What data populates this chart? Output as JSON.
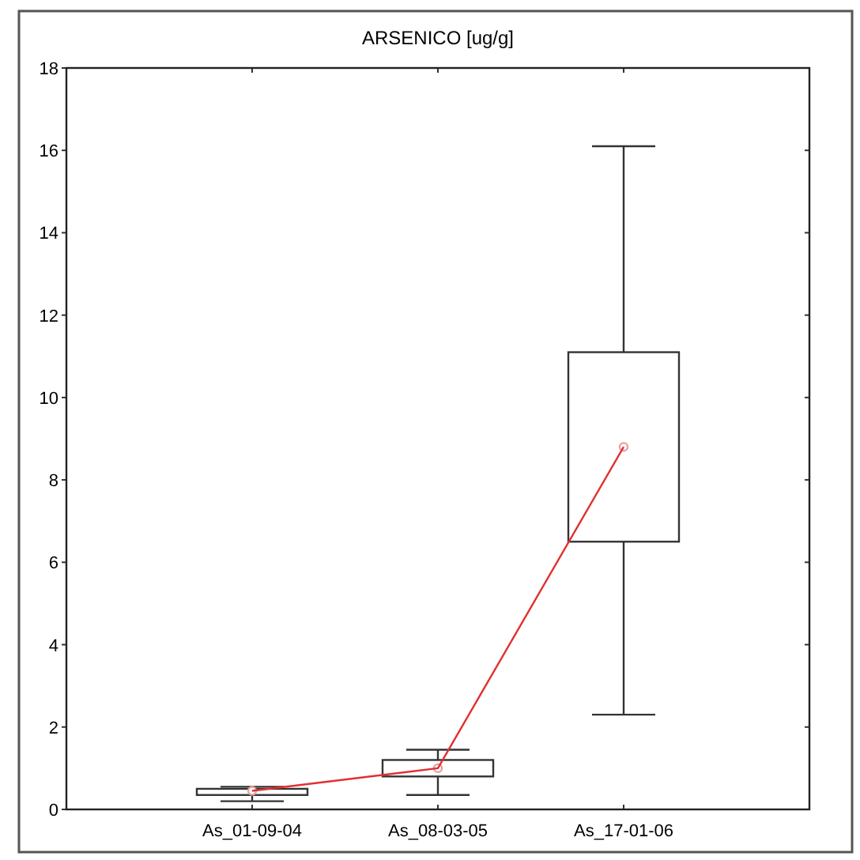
{
  "chart_data": {
    "type": "box",
    "title": "ARSENICO [ug/g]",
    "categories": [
      "As_01-09-04",
      "As_08-03-05",
      "As_17-01-06"
    ],
    "boxes": [
      {
        "low": 0.2,
        "q1": 0.35,
        "median": 0.45,
        "q3": 0.5,
        "high": 0.55
      },
      {
        "low": 0.35,
        "q1": 0.8,
        "median": 1.0,
        "q3": 1.2,
        "high": 1.45
      },
      {
        "low": 2.3,
        "q1": 6.5,
        "median": 8.8,
        "q3": 11.1,
        "high": 16.1
      }
    ],
    "series": [
      {
        "type": "line",
        "color": "#e03030",
        "values": [
          0.45,
          1.0,
          8.8
        ]
      }
    ],
    "ylim": [
      0,
      18
    ],
    "yticks": [
      0,
      2,
      4,
      6,
      8,
      10,
      12,
      14,
      16,
      18
    ],
    "grid": false
  }
}
